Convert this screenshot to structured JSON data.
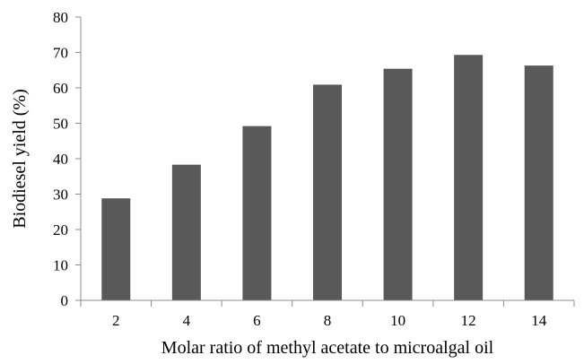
{
  "chart_data": {
    "type": "bar",
    "categories": [
      "2",
      "4",
      "6",
      "8",
      "10",
      "12",
      "14"
    ],
    "values": [
      28.8,
      38.3,
      49.2,
      60.9,
      65.4,
      69.3,
      66.3
    ],
    "title": "",
    "xlabel": "Molar ratio of methyl acetate to microalgal oil",
    "ylabel": "Biodiesel yield (%)",
    "ylim": [
      0,
      80
    ],
    "yticks": [
      "0",
      "10",
      "20",
      "30",
      "40",
      "50",
      "60",
      "70",
      "80"
    ],
    "grid": false,
    "legend": "none",
    "colors": {
      "bar": "#595959",
      "axis": "#8c8c8c",
      "text": "#000000"
    }
  }
}
